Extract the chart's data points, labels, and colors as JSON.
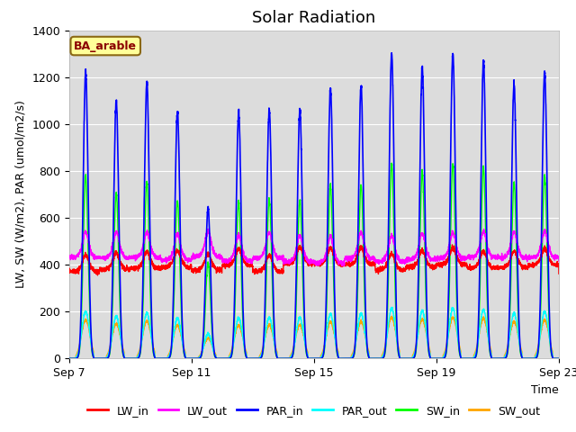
{
  "title": "Solar Radiation",
  "ylabel": "LW, SW (W/m2), PAR (umol/m2/s)",
  "xlabel": "Time",
  "ylim": [
    0,
    1400
  ],
  "background_color": "#ffffff",
  "plot_bg_color": "#dcdcdc",
  "annotation_text": "BA_arable",
  "annotation_bg": "#ffff99",
  "annotation_border": "#8b6914",
  "annotation_text_color": "#8b0000",
  "series": {
    "LW_in": {
      "color": "#ff0000",
      "lw": 1.0
    },
    "LW_out": {
      "color": "#ff00ff",
      "lw": 1.0
    },
    "PAR_in": {
      "color": "#0000ff",
      "lw": 1.2
    },
    "PAR_out": {
      "color": "#00ffff",
      "lw": 1.0
    },
    "SW_in": {
      "color": "#00ff00",
      "lw": 1.0
    },
    "SW_out": {
      "color": "#ffa500",
      "lw": 1.0
    }
  },
  "xtick_labels": [
    "Sep 7",
    "Sep 11",
    "Sep 15",
    "Sep 19",
    "Sep 23"
  ],
  "xtick_positions": [
    0,
    4,
    8,
    12,
    16
  ],
  "days": 17,
  "pts_per_day": 288,
  "lw_in_base": 390,
  "lw_out_base": 415,
  "title_fontsize": 13,
  "label_fontsize": 9,
  "tick_fontsize": 9,
  "legend_fontsize": 9
}
